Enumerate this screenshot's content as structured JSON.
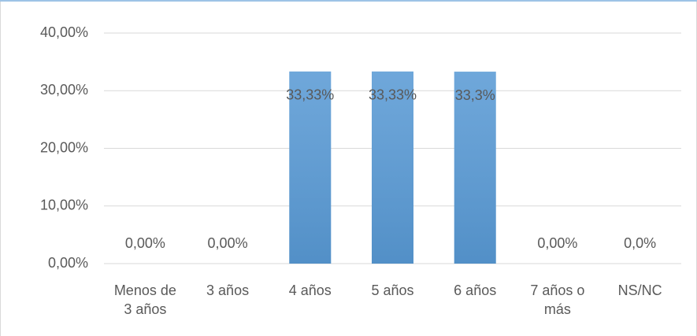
{
  "chart_data": {
    "type": "bar",
    "categories": [
      "Menos de 3 años",
      "3 años",
      "4 años",
      "5 años",
      "6 años",
      "7 años o más",
      "NS/NC"
    ],
    "values": [
      0,
      0,
      33.33,
      33.33,
      33.3,
      0,
      0
    ],
    "value_labels": [
      "0,00%",
      "0,00%",
      "33,33%",
      "33,33%",
      "33,3%",
      "0,00%",
      "0,0%"
    ],
    "color": "#5b9bd5",
    "ylim": [
      0,
      40
    ],
    "yticks": [
      {
        "value": 0,
        "label": "0,00%"
      },
      {
        "value": 10,
        "label": "10,00%"
      },
      {
        "value": 20,
        "label": "20,00%"
      },
      {
        "value": 30,
        "label": "30,00%"
      },
      {
        "value": 40,
        "label": "40,00%"
      }
    ],
    "grid": true
  }
}
